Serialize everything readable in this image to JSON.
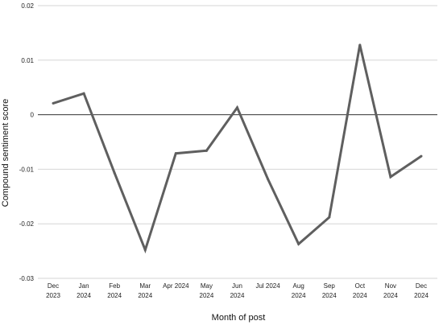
{
  "chart_data": {
    "type": "line",
    "title": "",
    "xlabel": "Month of post",
    "ylabel": "Compound sentiment score",
    "categories": [
      [
        "Dec",
        "2023"
      ],
      [
        "Jan",
        "2024"
      ],
      [
        "Feb",
        "2024"
      ],
      [
        "Mar",
        "2024"
      ],
      [
        "Apr 2024"
      ],
      [
        "May",
        "2024"
      ],
      [
        "Jun",
        "2024"
      ],
      [
        "Jul 2024"
      ],
      [
        "Aug",
        "2024"
      ],
      [
        "Sep",
        "2024"
      ],
      [
        "Oct",
        "2024"
      ],
      [
        "Nov",
        "2024"
      ],
      [
        "Dec",
        "2024"
      ]
    ],
    "series": [
      {
        "values": [
          0.0021,
          0.0039,
          -0.0107,
          -0.0248,
          -0.0071,
          -0.0066,
          0.0013,
          -0.0118,
          -0.0237,
          -0.0188,
          0.0128,
          -0.0114,
          -0.0076
        ],
        "color": "#5f5f5f"
      }
    ],
    "ylim": [
      -0.03,
      0.02
    ],
    "yticks": [
      0.02,
      0.01,
      0,
      -0.01,
      -0.02,
      -0.03
    ],
    "ytick_labels": [
      "0.02",
      "0.01",
      "0",
      "-0.01",
      "-0.02",
      "-0.03"
    ],
    "grid": true,
    "zero_line": true,
    "legend": "none"
  }
}
